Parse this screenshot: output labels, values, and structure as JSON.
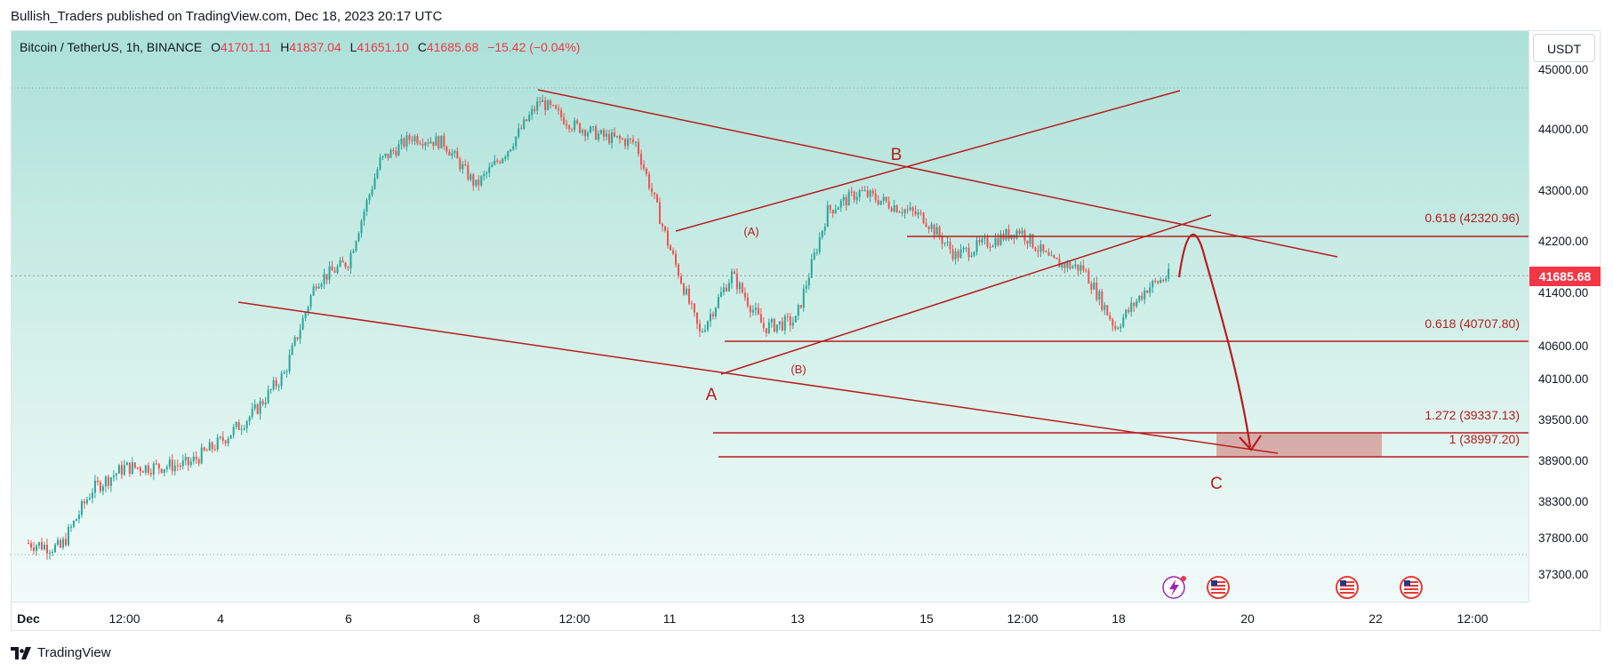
{
  "header": {
    "published": "Bullish_Traders published on TradingView.com, Dec 18, 2023 20:17 UTC"
  },
  "legend": {
    "symbol": "Bitcoin / TetherUS, 1h, BINANCE",
    "o_label": "O",
    "o": "41701.11",
    "h_label": "H",
    "h": "41837.04",
    "l_label": "L",
    "l": "41651.10",
    "c_label": "C",
    "c": "41685.68",
    "change": "−15.42 (−0.04%)"
  },
  "currency_button": "USDT",
  "current_price": "41685.68",
  "brand": "TradingView",
  "colors": {
    "up": "#26a69a",
    "down": "#ef5350",
    "drawing": "#b71c1c",
    "price_tag": "#f23645"
  },
  "chart_data": {
    "type": "candlestick",
    "symbol": "BTCUSDT",
    "interval": "1h",
    "y_ticks": [
      "45000.00",
      "44000.00",
      "43000.00",
      "42200.00",
      "41400.00",
      "40600.00",
      "40100.00",
      "39500.00",
      "38900.00",
      "38300.00",
      "37800.00",
      "37300.00"
    ],
    "x_ticks": [
      "Dec",
      "12:00",
      "4",
      "6",
      "8",
      "12:00",
      "11",
      "13",
      "15",
      "12:00",
      "18",
      "20",
      "22",
      "12:00"
    ],
    "price_path": [
      [
        "Dec 1",
        37750
      ],
      [
        "Dec 1 12:00",
        37680
      ],
      [
        "Dec 2",
        38500
      ],
      [
        "Dec 2 12:00",
        38820
      ],
      [
        "Dec 3",
        38830
      ],
      [
        "Dec 3 12:00",
        38870
      ],
      [
        "Dec 4",
        39200
      ],
      [
        "Dec 4 12:00",
        39600
      ],
      [
        "Dec 5",
        40200
      ],
      [
        "Dec 5 12:00",
        41600
      ],
      [
        "Dec 6",
        41900
      ],
      [
        "Dec 6 12:00",
        43500
      ],
      [
        "Dec 7",
        43900
      ],
      [
        "Dec 7 12:00",
        43800
      ],
      [
        "Dec 8",
        43100
      ],
      [
        "Dec 8 12:00",
        43700
      ],
      [
        "Dec 9",
        44500
      ],
      [
        "Dec 9 12:00",
        44100
      ],
      [
        "Dec 10",
        43900
      ],
      [
        "Dec 10 12:00",
        43800
      ],
      [
        "Dec 11",
        42200
      ],
      [
        "Dec 11 12:00",
        40800
      ],
      [
        "Dec 12",
        41700
      ],
      [
        "Dec 12 12:00",
        40900
      ],
      [
        "Dec 13",
        41000
      ],
      [
        "Dec 13 12:00",
        42700
      ],
      [
        "Dec 14",
        43000
      ],
      [
        "Dec 14 12:00",
        42800
      ],
      [
        "Dec 15",
        42600
      ],
      [
        "Dec 15 12:00",
        42000
      ],
      [
        "Dec 16",
        42200
      ],
      [
        "Dec 16 12:00",
        42400
      ],
      [
        "Dec 17",
        41900
      ],
      [
        "Dec 17 12:00",
        41800
      ],
      [
        "Dec 18",
        40900
      ],
      [
        "Dec 18 12:00",
        41500
      ],
      [
        "Dec 18 20:00",
        41685.68
      ]
    ],
    "fib_levels": [
      {
        "label": "0.618 (42320.96)",
        "price": 42320.96
      },
      {
        "label": "0.618 (40707.80)",
        "price": 40707.8
      },
      {
        "label": "1.272 (39337.13)",
        "price": 39337.13
      },
      {
        "label": "1 (38997.20)",
        "price": 38997.2
      }
    ],
    "wave_labels": [
      "A",
      "B",
      "C",
      "(A)",
      "(B)"
    ]
  }
}
